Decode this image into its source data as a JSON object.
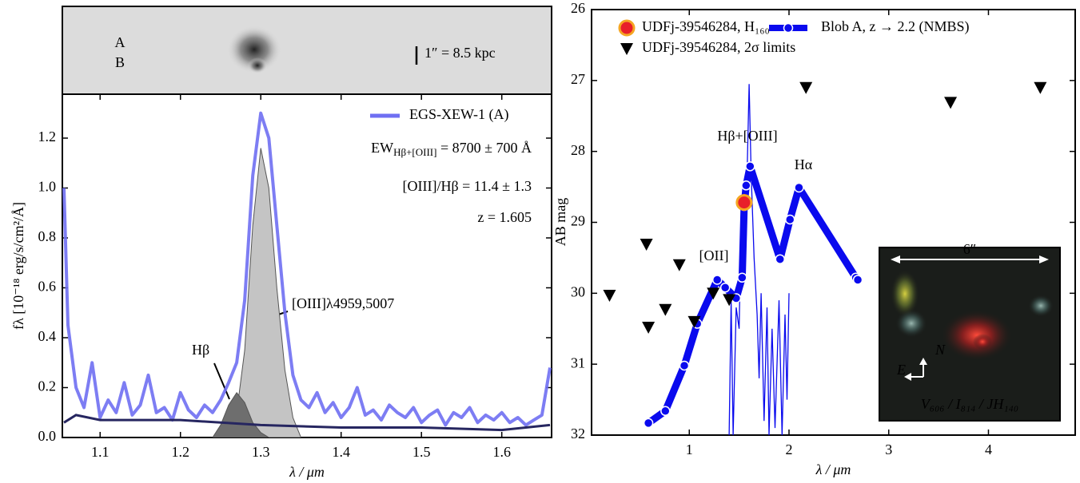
{
  "chart_data": [
    {
      "type": "line",
      "x_label": "λ / μm",
      "y_label": "fλ [10⁻¹⁸ erg/s/cm²/Å]",
      "xlim": [
        1.053,
        1.662
      ],
      "ylim": [
        0,
        1.376
      ],
      "xticks": [
        1.1,
        1.2,
        1.3,
        1.4,
        1.5,
        1.6
      ],
      "yticks": [
        {
          "value": 0,
          "label": "0.0"
        },
        0.2,
        0.4,
        0.6,
        0.8,
        {
          "value": 1,
          "label": "1.0"
        },
        1.2
      ],
      "legend": "upper right",
      "series": [
        {
          "name": "EGS-XEW-1 (A)",
          "color": "#6f6ff2",
          "x": [
            1.055,
            1.06,
            1.07,
            1.08,
            1.09,
            1.1,
            1.11,
            1.12,
            1.13,
            1.14,
            1.15,
            1.16,
            1.17,
            1.18,
            1.19,
            1.2,
            1.21,
            1.22,
            1.23,
            1.24,
            1.25,
            1.26,
            1.27,
            1.28,
            1.29,
            1.3,
            1.31,
            1.32,
            1.33,
            1.34,
            1.35,
            1.36,
            1.37,
            1.38,
            1.39,
            1.4,
            1.41,
            1.42,
            1.43,
            1.44,
            1.45,
            1.46,
            1.47,
            1.48,
            1.49,
            1.5,
            1.51,
            1.52,
            1.53,
            1.54,
            1.55,
            1.56,
            1.57,
            1.58,
            1.59,
            1.6,
            1.61,
            1.62,
            1.63,
            1.64,
            1.65,
            1.66
          ],
          "values": [
            1.0,
            0.45,
            0.2,
            0.12,
            0.3,
            0.08,
            0.15,
            0.1,
            0.22,
            0.09,
            0.13,
            0.25,
            0.1,
            0.12,
            0.07,
            0.18,
            0.11,
            0.08,
            0.13,
            0.1,
            0.15,
            0.22,
            0.3,
            0.55,
            1.05,
            1.3,
            1.2,
            0.85,
            0.5,
            0.25,
            0.15,
            0.12,
            0.18,
            0.1,
            0.14,
            0.08,
            0.12,
            0.2,
            0.09,
            0.11,
            0.07,
            0.13,
            0.1,
            0.08,
            0.12,
            0.06,
            0.09,
            0.11,
            0.05,
            0.1,
            0.08,
            0.12,
            0.06,
            0.09,
            0.07,
            0.1,
            0.06,
            0.08,
            0.05,
            0.07,
            0.09,
            0.28
          ]
        }
      ],
      "fills": [
        {
          "color": "#c4c4c4",
          "x": [
            1.24,
            1.26,
            1.27,
            1.28,
            1.29,
            1.3,
            1.31,
            1.32,
            1.33,
            1.34,
            1.35
          ],
          "values": [
            0,
            0.05,
            0.1,
            0.35,
            0.85,
            1.16,
            1.0,
            0.6,
            0.27,
            0.08,
            0
          ]
        },
        {
          "color": "#6e6e6e",
          "x": [
            1.24,
            1.25,
            1.26,
            1.27,
            1.28,
            1.29,
            1.3,
            1.31
          ],
          "values": [
            0,
            0.05,
            0.13,
            0.18,
            0.14,
            0.06,
            0.02,
            0
          ]
        }
      ],
      "continuum": {
        "color": "#262660",
        "x": [
          1.055,
          1.07,
          1.1,
          1.2,
          1.25,
          1.3,
          1.4,
          1.5,
          1.6,
          1.66
        ],
        "values": [
          0.06,
          0.09,
          0.07,
          0.07,
          0.06,
          0.05,
          0.04,
          0.04,
          0.03,
          0.05
        ]
      },
      "annotations": [
        {
          "text": "EW",
          "sub": "Hβ+[OIII]",
          "tail": " = 8700 ± 700 Å"
        },
        {
          "text": "[OIII]/Hβ = 11.4 ± 1.3"
        },
        {
          "text": "z = 1.605"
        },
        {
          "text": "[OIII]λ4959,5007"
        },
        {
          "text": "Hβ"
        }
      ],
      "image_labels": [
        "A",
        "B"
      ],
      "image_label_colors": [
        "#2a2ae0",
        "#1a8a1a"
      ],
      "scale_bar": "1″ = 8.5 kpc"
    },
    {
      "type": "scatter",
      "x_label": "λ / μm",
      "y_label": "AB mag",
      "xlim": [
        0.02,
        4.87
      ],
      "ylim": [
        26,
        32
      ],
      "y_inverted": true,
      "xticks": [
        1,
        2,
        3,
        4
      ],
      "yticks": [
        26,
        27,
        28,
        29,
        30,
        31,
        32
      ],
      "legend": "upper left",
      "series": [
        {
          "name": "UDFj-39546284, H₁₆₀",
          "color": "#e8202a",
          "edge": "#f5a623",
          "marker": "circle",
          "x": [
            1.55
          ],
          "values": [
            28.72
          ],
          "errors": [
            0.12
          ]
        },
        {
          "name": "UDFj-39546284, 2σ limits",
          "color": "#000000",
          "marker": "triangle",
          "x": [
            0.2,
            0.59,
            0.57,
            0.76,
            0.9,
            1.05,
            1.24,
            1.4,
            2.17,
            3.62,
            4.52
          ],
          "values": [
            30.03,
            30.48,
            29.31,
            30.23,
            29.6,
            30.4,
            30.0,
            30.09,
            27.1,
            27.31,
            27.1
          ]
        },
        {
          "name": "Blob A, z → 2.2 (NMBS)",
          "color": "#0a0aee",
          "marker": "line-dot",
          "x": [
            0.59,
            0.76,
            0.95,
            1.08,
            1.28,
            1.36,
            1.47,
            1.53,
            1.55,
            1.57,
            1.61,
            1.91,
            2.01,
            2.1,
            2.67,
            2.69
          ],
          "values": [
            31.83,
            31.66,
            31.02,
            30.43,
            29.81,
            29.92,
            30.07,
            29.78,
            28.77,
            28.48,
            28.21,
            29.52,
            28.96,
            28.51,
            29.78,
            29.81
          ]
        }
      ],
      "model_spectrum": {
        "color": "#0a0aee",
        "x": [
          1.4,
          1.42,
          1.44,
          1.47,
          1.5,
          1.52,
          1.55,
          1.58,
          1.6,
          1.62,
          1.65,
          1.68,
          1.7,
          1.72,
          1.75,
          1.78,
          1.8,
          1.83,
          1.86,
          1.9,
          1.93,
          1.96,
          1.98,
          2.0
        ],
        "values": [
          32,
          30.1,
          32,
          30.2,
          30.5,
          29.0,
          28.5,
          28.3,
          27.05,
          28.3,
          29.5,
          30.3,
          31.2,
          30.0,
          31.8,
          30.2,
          32,
          30.5,
          31.9,
          30.1,
          32,
          30.3,
          31.5,
          30.0
        ]
      },
      "annotations": [
        "Hβ+[OIII]",
        "Hα",
        "[OII]"
      ],
      "inset": {
        "size_label": "6″",
        "north": "N",
        "east": "E",
        "caption": "V₆₀₆ / I₈₁₄ / JH₁₄₀"
      }
    }
  ]
}
